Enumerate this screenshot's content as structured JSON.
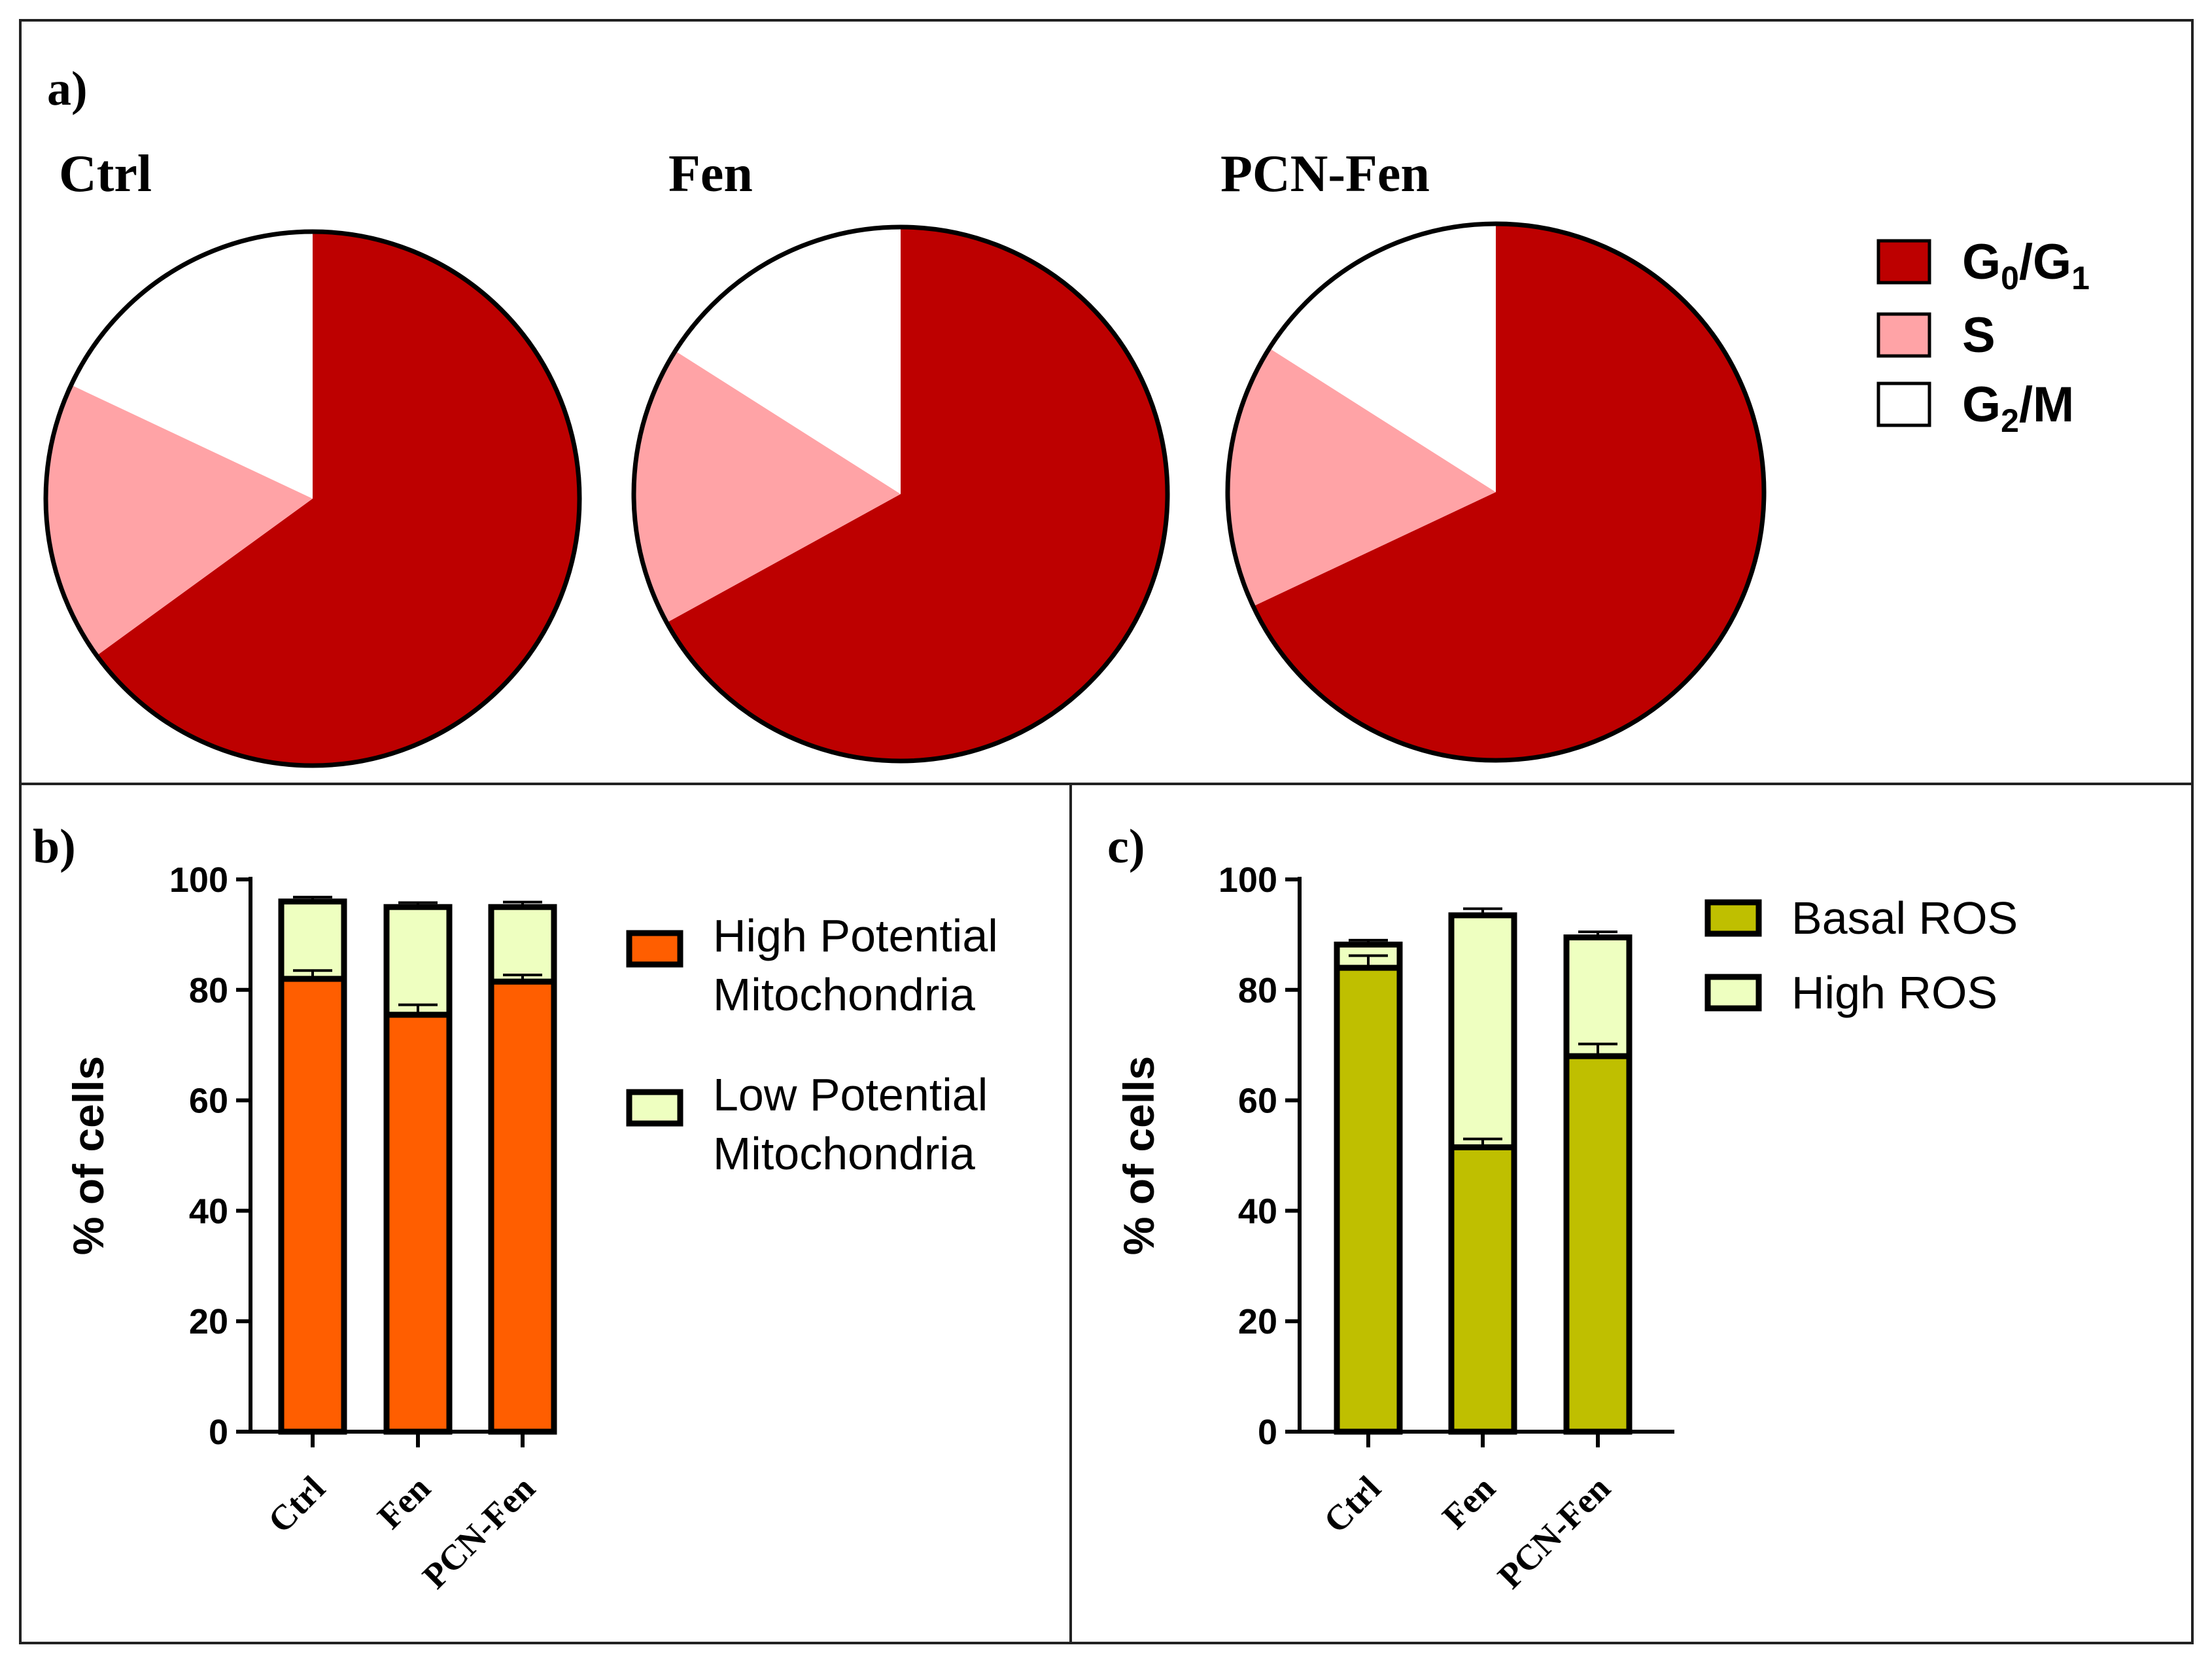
{
  "panels": {
    "a": {
      "label": "a)",
      "chart_data": {
        "type": "pie",
        "legend_position": "right",
        "legend": [
          {
            "key": "g0g1",
            "base": "G",
            "sub1": "0",
            "mid": "/G",
            "sub2": "1",
            "color": "#BD0000"
          },
          {
            "key": "s",
            "base": "S",
            "sub1": "",
            "mid": "",
            "sub2": "",
            "color": "#FFA3A6"
          },
          {
            "key": "g2m",
            "base": "G",
            "sub1": "2",
            "mid": "/M",
            "sub2": "",
            "color": "#FFFFFF"
          }
        ],
        "pies": [
          {
            "title": "Ctrl",
            "slices": [
              {
                "name": "G0/G1",
                "value": 65
              },
              {
                "name": "S",
                "value": 17
              },
              {
                "name": "G2/M",
                "value": 18
              }
            ]
          },
          {
            "title": "Fen",
            "slices": [
              {
                "name": "G0/G1",
                "value": 67
              },
              {
                "name": "S",
                "value": 17
              },
              {
                "name": "G2/M",
                "value": 16
              }
            ]
          },
          {
            "title": "PCN-Fen",
            "slices": [
              {
                "name": "G0/G1",
                "value": 68
              },
              {
                "name": "S",
                "value": 16
              },
              {
                "name": "G2/M",
                "value": 16
              }
            ]
          }
        ]
      }
    },
    "b": {
      "label": "b)",
      "chart_data": {
        "type": "bar",
        "stacked": true,
        "categories": [
          "Ctrl",
          "Fen",
          "PCN-Fen"
        ],
        "ylabel": "% of cells",
        "ylim": [
          0,
          100
        ],
        "yticks": [
          0,
          20,
          40,
          60,
          80,
          100
        ],
        "legend_position": "right",
        "series": [
          {
            "name": "High Potential Mitochondria",
            "lines": [
              "High Potential",
              "Mitochondria"
            ],
            "color": "#FF5E00",
            "values": [
              82,
              75.5,
              81.5
            ],
            "errors": [
              1.5,
              1.8,
              1.2
            ]
          },
          {
            "name": "Low Potential Mitochondria",
            "lines": [
              "Low Potential",
              "Mitochondria"
            ],
            "color": "#EEFFC0",
            "values": [
              14,
              19.5,
              13.5
            ],
            "errors": [
              0.8,
              0.8,
              0.9
            ]
          }
        ]
      }
    },
    "c": {
      "label": "c)",
      "chart_data": {
        "type": "bar",
        "stacked": true,
        "categories": [
          "Ctrl",
          "Fen",
          "PCN-Fen"
        ],
        "ylabel": "% of cells",
        "ylim": [
          0,
          100
        ],
        "yticks": [
          0,
          20,
          40,
          60,
          80,
          100
        ],
        "legend_position": "right",
        "series": [
          {
            "name": "Basal ROS",
            "lines": [
              "Basal ROS"
            ],
            "color": "#BFBF00",
            "values": [
              84,
              51.5,
              68
            ],
            "errors": [
              2.2,
              1.5,
              2.2
            ]
          },
          {
            "name": "High ROS",
            "lines": [
              "High ROS"
            ],
            "color": "#EEFFC0",
            "values": [
              4.2,
              42,
              21.5
            ],
            "errors": [
              0.8,
              1.2,
              1.0
            ]
          }
        ]
      }
    }
  }
}
